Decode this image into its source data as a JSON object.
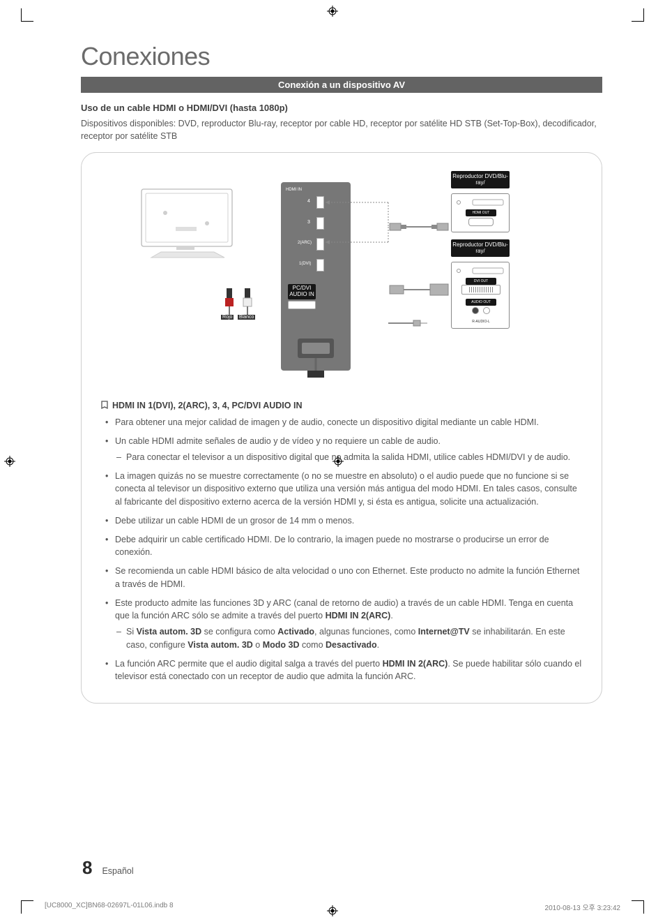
{
  "page": {
    "title": "Conexiones",
    "section_bar": "Conexión a un dispositivo AV",
    "sub_head": "Uso de un cable HDMI o HDMI/DVI (hasta 1080p)",
    "intro": "Dispositivos disponibles: DVD, reproductor Blu-ray, receptor por cable HD, receptor por satélite HD STB (Set-Top-Box), decodificador, receptor por satélite STB",
    "page_number": "8",
    "language": "Español",
    "print_left": "[UC8000_XC]BN68-02697L-01L06.indb   8",
    "print_right": "2010-08-13   오후 3:23:42"
  },
  "diagram": {
    "device1": "Reproductor DVD/Blu-ray/",
    "device2": "Reproductor DVD/Blu-ray/",
    "hdmi_out": "HDMI OUT",
    "dvi_out": "DVI OUT",
    "audio_out": "AUDIO OUT",
    "r_audio_l": "R-AUDIO-L",
    "red": "Rojo",
    "white": "Blanco",
    "port4": "4",
    "port3": "3",
    "port2": "2(ARC)",
    "port1": "1(DVI)",
    "pc_dvi": "PC/DVI AUDIO IN"
  },
  "notes": {
    "heading": "HDMI IN 1(DVI), 2(ARC), 3, 4, PC/DVI AUDIO IN",
    "items": [
      {
        "text": "Para obtener una mejor calidad de imagen y de audio, conecte un dispositivo digital mediante un cable HDMI."
      },
      {
        "text": "Un cable HDMI admite señales de audio y de vídeo y no requiere un cable de audio.",
        "sub": [
          "Para conectar el televisor a un dispositivo digital que no admita la salida HDMI, utilice cables HDMI/DVI y de audio."
        ]
      },
      {
        "text": "La imagen quizás no se muestre correctamente (o no se muestre en absoluto) o el audio puede que no funcione si se conecta al televisor un dispositivo externo que utiliza una versión más antigua del modo HDMI. En tales casos, consulte al fabricante del dispositivo externo acerca de la versión HDMI y, si ésta es antigua, solicite una actualización."
      },
      {
        "text": "Debe utilizar un cable HDMI de un grosor de 14 mm o menos."
      },
      {
        "text": "Debe adquirir un cable certificado HDMI. De lo contrario, la imagen puede no mostrarse o producirse un error de conexión."
      },
      {
        "text": "Se recomienda un cable HDMI básico de alta velocidad o uno con Ethernet. Este producto no admite la función Ethernet a través de HDMI."
      },
      {
        "html": "Este producto admite las funciones 3D y ARC (canal de retorno de audio) a través de un cable HDMI. Tenga en cuenta que la función ARC sólo se admite a través del puerto <span class=\"bold\">HDMI IN 2(ARC)</span>.",
        "sub_html": [
          "Si <span class=\"bold\">Vista autom. 3D</span> se configura como <span class=\"bold\">Activado</span>, algunas funciones, como <span class=\"bold\">Internet@TV</span> se inhabilitarán. En este caso, configure <span class=\"bold\">Vista autom. 3D</span> o <span class=\"bold\">Modo 3D</span> como <span class=\"bold\">Desactivado</span>."
        ]
      },
      {
        "html": "La función ARC permite que el audio digital salga a través del puerto <span class=\"bold\">HDMI IN 2(ARC)</span>. Se puede habilitar sólo cuando el televisor está conectado con un receptor de audio que admita la función ARC."
      }
    ]
  },
  "colors": {
    "title_gray": "#6b6b6b",
    "bar_bg": "#636363",
    "text_gray": "#555555",
    "border_gray": "#cfcfcf",
    "panel_gray": "#777777",
    "badge_black": "#161616"
  }
}
